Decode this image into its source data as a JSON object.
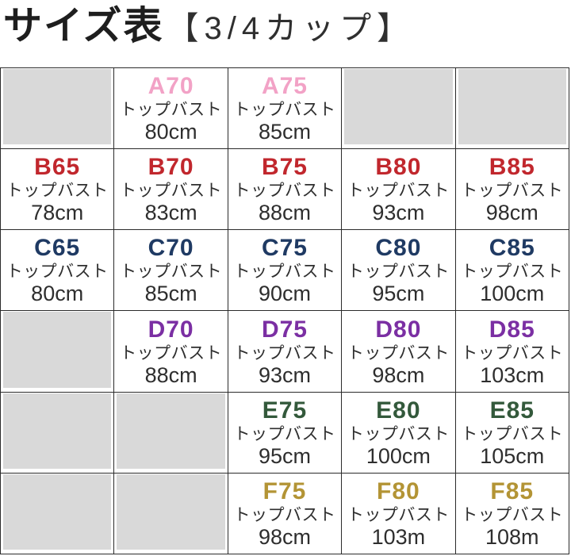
{
  "title": {
    "main": "サイズ表",
    "bracket": "【3/4カップ】"
  },
  "colors": {
    "grid_border": "#2b2b2b",
    "empty_cell_gray": "#d9d9d9",
    "body_text": "#2e2e2e",
    "cup_a": "#f2a2c6",
    "cup_b": "#c1272d",
    "cup_c": "#1f3a63",
    "cup_d": "#7b2fa3",
    "cup_e": "#33593b",
    "cup_f": "#b39435"
  },
  "chart_data": {
    "type": "table",
    "title": "サイズ表【3/4カップ】",
    "columns": [
      "65",
      "70",
      "75",
      "80",
      "85"
    ],
    "rows": [
      {
        "color": "#f2a2c6",
        "cells": [
          null,
          {
            "code": "A70",
            "label": "トップバスト",
            "value": "80cm"
          },
          {
            "code": "A75",
            "label": "トップバスト",
            "value": "85cm"
          },
          null,
          null
        ]
      },
      {
        "color": "#c1272d",
        "cells": [
          {
            "code": "B65",
            "label": "トップバスト",
            "value": "78cm"
          },
          {
            "code": "B70",
            "label": "トップバスト",
            "value": "83cm"
          },
          {
            "code": "B75",
            "label": "トップバスト",
            "value": "88cm"
          },
          {
            "code": "B80",
            "label": "トップバスト",
            "value": "93cm"
          },
          {
            "code": "B85",
            "label": "トップバスト",
            "value": "98cm"
          }
        ]
      },
      {
        "color": "#1f3a63",
        "cells": [
          {
            "code": "C65",
            "label": "トップバスト",
            "value": "80cm"
          },
          {
            "code": "C70",
            "label": "トップバスト",
            "value": "85cm"
          },
          {
            "code": "C75",
            "label": "トップバスト",
            "value": "90cm"
          },
          {
            "code": "C80",
            "label": "トップバスト",
            "value": "95cm"
          },
          {
            "code": "C85",
            "label": "トップバスト",
            "value": "100cm"
          }
        ]
      },
      {
        "color": "#7b2fa3",
        "cells": [
          null,
          {
            "code": "D70",
            "label": "トップバスト",
            "value": "88cm"
          },
          {
            "code": "D75",
            "label": "トップバスト",
            "value": "93cm"
          },
          {
            "code": "D80",
            "label": "トップバスト",
            "value": "98cm"
          },
          {
            "code": "D85",
            "label": "トップバスト",
            "value": "103cm"
          }
        ]
      },
      {
        "color": "#33593b",
        "cells": [
          null,
          null,
          {
            "code": "E75",
            "label": "トップバスト",
            "value": "95cm"
          },
          {
            "code": "E80",
            "label": "トップバスト",
            "value": "100cm"
          },
          {
            "code": "E85",
            "label": "トップバスト",
            "value": "105cm"
          }
        ]
      },
      {
        "color": "#b39435",
        "cells": [
          null,
          null,
          {
            "code": "F75",
            "label": "トップバスト",
            "value": "98cm"
          },
          {
            "code": "F80",
            "label": "トップバスト",
            "value": "103m"
          },
          {
            "code": "F85",
            "label": "トップバスト",
            "value": "108m"
          }
        ]
      }
    ]
  }
}
